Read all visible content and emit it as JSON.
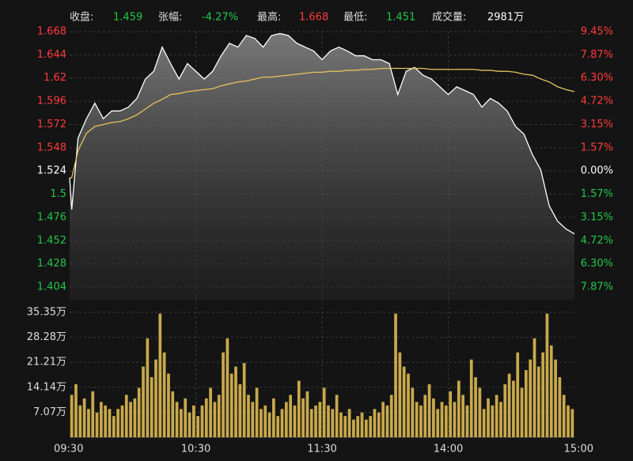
{
  "chart_data": {
    "type": "intraday",
    "stats": [
      {
        "label": "收盘:",
        "value": "1.459",
        "color": "#22c84a"
      },
      {
        "label": "张幅:",
        "value": "-4.27%",
        "color": "#22c84a"
      },
      {
        "label": "最高:",
        "value": "1.668",
        "color": "#ff3b3b"
      },
      {
        "label": "最低:",
        "value": "1.451",
        "color": "#22c84a"
      },
      {
        "label": "成交量:",
        "value": "2981万",
        "color": "#ffffff"
      }
    ],
    "x": [
      0,
      1,
      4,
      8,
      12,
      16,
      20,
      24,
      28,
      32,
      36,
      40,
      44,
      48,
      52,
      56,
      60,
      64,
      68,
      72,
      76,
      80,
      84,
      88,
      92,
      96,
      100,
      104,
      108,
      112,
      116,
      120,
      124,
      128,
      132,
      136,
      140,
      144,
      148,
      152,
      156,
      160,
      164,
      168,
      172,
      176,
      180,
      184,
      188,
      192,
      196,
      200,
      204,
      208,
      212,
      216,
      220,
      224,
      228,
      232,
      236,
      240
    ],
    "xlim": [
      0,
      240
    ],
    "xticks": [
      {
        "value": 0,
        "label": "09:30"
      },
      {
        "value": 60,
        "label": "10:30"
      },
      {
        "value": 120,
        "label": "11:30"
      },
      {
        "value": 180,
        "label": "14:00"
      },
      {
        "value": 240,
        "label": "15:00"
      }
    ],
    "series": [
      {
        "name": "price",
        "color": "#ffffff",
        "values": [
          1.517,
          1.484,
          1.558,
          1.578,
          1.594,
          1.578,
          1.586,
          1.586,
          1.59,
          1.599,
          1.619,
          1.627,
          1.652,
          1.635,
          1.619,
          1.635,
          1.627,
          1.619,
          1.627,
          1.643,
          1.656,
          1.652,
          1.664,
          1.661,
          1.652,
          1.664,
          1.666,
          1.664,
          1.656,
          1.652,
          1.648,
          1.639,
          1.648,
          1.652,
          1.648,
          1.643,
          1.643,
          1.639,
          1.639,
          1.635,
          1.603,
          1.627,
          1.631,
          1.623,
          1.619,
          1.611,
          1.603,
          1.611,
          1.607,
          1.603,
          1.59,
          1.599,
          1.594,
          1.586,
          1.57,
          1.562,
          1.541,
          1.525,
          1.488,
          1.472,
          1.464,
          1.459
        ]
      },
      {
        "name": "average",
        "color": "#e6c35c",
        "values": [
          1.517,
          1.517,
          1.545,
          1.563,
          1.57,
          1.572,
          1.574,
          1.575,
          1.578,
          1.582,
          1.588,
          1.594,
          1.598,
          1.603,
          1.604,
          1.606,
          1.607,
          1.608,
          1.609,
          1.612,
          1.614,
          1.616,
          1.617,
          1.619,
          1.621,
          1.621,
          1.622,
          1.623,
          1.624,
          1.625,
          1.626,
          1.626,
          1.627,
          1.627,
          1.628,
          1.628,
          1.629,
          1.629,
          1.63,
          1.63,
          1.63,
          1.63,
          1.63,
          1.63,
          1.629,
          1.629,
          1.629,
          1.629,
          1.629,
          1.629,
          1.628,
          1.628,
          1.627,
          1.627,
          1.626,
          1.624,
          1.623,
          1.619,
          1.616,
          1.611,
          1.608,
          1.606
        ]
      }
    ],
    "ylim": [
      1.404,
      1.668
    ],
    "yticks": [
      1.668,
      1.644,
      1.62,
      1.596,
      1.572,
      1.548,
      1.524,
      1.5,
      1.476,
      1.452,
      1.428,
      1.404
    ],
    "y2lim": [
      -7.87,
      9.45
    ],
    "y2ticks": [
      {
        "value": 9.45,
        "label": "9.45%"
      },
      {
        "value": 7.87,
        "label": "7.87%"
      },
      {
        "value": 6.3,
        "label": "6.30%"
      },
      {
        "value": 4.72,
        "label": "4.72%"
      },
      {
        "value": 3.15,
        "label": "3.15%"
      },
      {
        "value": 1.57,
        "label": "1.57%"
      },
      {
        "value": 0,
        "label": "0.00%"
      },
      {
        "value": -1.57,
        "label": "1.57%"
      },
      {
        "value": -3.15,
        "label": "3.15%"
      },
      {
        "value": -4.72,
        "label": "4.72%"
      },
      {
        "value": -6.3,
        "label": "6.30%"
      },
      {
        "value": -7.87,
        "label": "7.87%"
      }
    ],
    "up_color": "#ff3b3b",
    "down_color": "#22c84a",
    "flat_color": "#ffffff",
    "grid": true,
    "volume": {
      "color": "#c9a94b",
      "x": [
        1,
        3,
        5,
        7,
        9,
        11,
        13,
        15,
        17,
        19,
        21,
        23,
        25,
        27,
        29,
        31,
        33,
        35,
        37,
        39,
        41,
        43,
        45,
        47,
        49,
        51,
        53,
        55,
        57,
        59,
        61,
        63,
        65,
        67,
        69,
        71,
        73,
        75,
        77,
        79,
        81,
        83,
        85,
        87,
        89,
        91,
        93,
        95,
        97,
        99,
        101,
        103,
        105,
        107,
        109,
        111,
        113,
        115,
        117,
        119,
        121,
        123,
        125,
        127,
        129,
        131,
        133,
        135,
        137,
        139,
        141,
        143,
        145,
        147,
        149,
        151,
        153,
        155,
        157,
        159,
        161,
        163,
        165,
        167,
        169,
        171,
        173,
        175,
        177,
        179,
        181,
        183,
        185,
        187,
        189,
        191,
        193,
        195,
        197,
        199,
        201,
        203,
        205,
        207,
        209,
        211,
        213,
        215,
        217,
        219,
        221,
        223,
        225,
        227,
        229,
        231,
        233,
        235,
        237,
        239
      ],
      "values": [
        12,
        15,
        9,
        11,
        8,
        13,
        7,
        10,
        9,
        8,
        6,
        8,
        9,
        12,
        10,
        11,
        14,
        20,
        28,
        17,
        22,
        35,
        24,
        18,
        13,
        10,
        8,
        11,
        7,
        9,
        6,
        9,
        11,
        14,
        10,
        12,
        24,
        28,
        18,
        20,
        15,
        21,
        12,
        10,
        14,
        8,
        9,
        7,
        11,
        6,
        8,
        10,
        12,
        9,
        16,
        11,
        13,
        8,
        9,
        10,
        14,
        9,
        8,
        12,
        7,
        6,
        8,
        5,
        6,
        7,
        5,
        6,
        8,
        7,
        10,
        9,
        12,
        35,
        24,
        20,
        18,
        14,
        10,
        9,
        12,
        15,
        11,
        8,
        10,
        9,
        13,
        10,
        16,
        12,
        9,
        22,
        17,
        14,
        8,
        11,
        9,
        12,
        10,
        15,
        18,
        16,
        24,
        14,
        19,
        22,
        28,
        20,
        24,
        35,
        26,
        22,
        17,
        12,
        9,
        8
      ],
      "ylim": [
        0,
        35.35
      ],
      "yticks": [
        {
          "value": 7.07,
          "label": "7.07万"
        },
        {
          "value": 14.14,
          "label": "14.14万"
        },
        {
          "value": 21.21,
          "label": "21.21万"
        },
        {
          "value": 28.28,
          "label": "28.28万"
        },
        {
          "value": 35.35,
          "label": "35.35万"
        }
      ]
    }
  }
}
